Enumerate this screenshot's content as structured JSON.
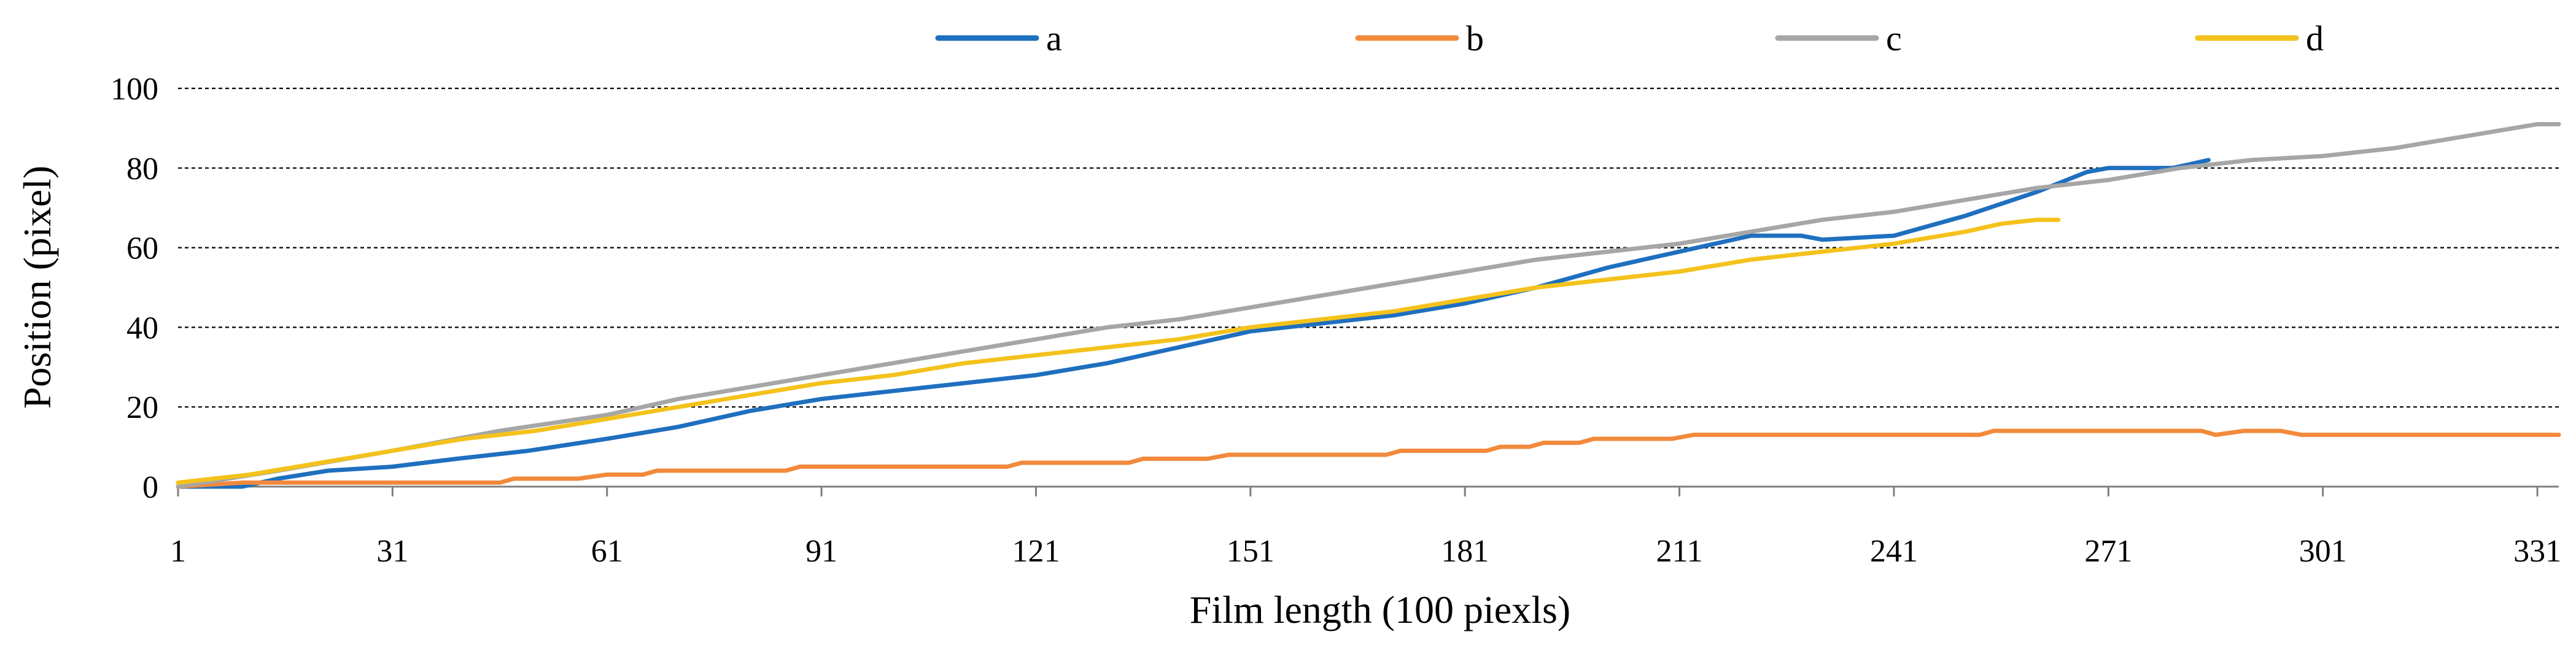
{
  "chart_data": {
    "type": "line",
    "title": "",
    "xlabel": "Film length (100 piexls)",
    "ylabel": "Position (pixel)",
    "xlim": [
      1,
      334
    ],
    "ylim": [
      0,
      100
    ],
    "x_ticks": [
      "1",
      "31",
      "61",
      "91",
      "121",
      "151",
      "181",
      "211",
      "241",
      "271",
      "301",
      "331"
    ],
    "y_ticks": [
      "0",
      "20",
      "40",
      "60",
      "80",
      "100"
    ],
    "grid": "horizontal-dashed",
    "legend_position": "top-center",
    "series": [
      {
        "name": "a",
        "color": "#1f6fbf",
        "points": [
          [
            1,
            0
          ],
          [
            10,
            0
          ],
          [
            15,
            2
          ],
          [
            22,
            4
          ],
          [
            31,
            5
          ],
          [
            40,
            7
          ],
          [
            50,
            9
          ],
          [
            61,
            12
          ],
          [
            71,
            15
          ],
          [
            81,
            19
          ],
          [
            91,
            22
          ],
          [
            101,
            24
          ],
          [
            111,
            26
          ],
          [
            121,
            28
          ],
          [
            131,
            31
          ],
          [
            141,
            35
          ],
          [
            151,
            39
          ],
          [
            161,
            41
          ],
          [
            171,
            43
          ],
          [
            181,
            46
          ],
          [
            191,
            50
          ],
          [
            201,
            55
          ],
          [
            211,
            59
          ],
          [
            221,
            63
          ],
          [
            228,
            63
          ],
          [
            231,
            62
          ],
          [
            241,
            63
          ],
          [
            251,
            68
          ],
          [
            261,
            74
          ],
          [
            268,
            79
          ],
          [
            271,
            80
          ],
          [
            280,
            80
          ],
          [
            285,
            82
          ]
        ]
      },
      {
        "name": "b",
        "color": "#f28a3c",
        "points": [
          [
            1,
            0
          ],
          [
            10,
            1
          ],
          [
            31,
            1
          ],
          [
            46,
            1
          ],
          [
            48,
            2
          ],
          [
            57,
            2
          ],
          [
            61,
            3
          ],
          [
            66,
            3
          ],
          [
            68,
            4
          ],
          [
            86,
            4
          ],
          [
            88,
            5
          ],
          [
            117,
            5
          ],
          [
            119,
            6
          ],
          [
            134,
            6
          ],
          [
            136,
            7
          ],
          [
            145,
            7
          ],
          [
            148,
            8
          ],
          [
            170,
            8
          ],
          [
            172,
            9
          ],
          [
            184,
            9
          ],
          [
            186,
            10
          ],
          [
            190,
            10
          ],
          [
            192,
            11
          ],
          [
            197,
            11
          ],
          [
            199,
            12
          ],
          [
            210,
            12
          ],
          [
            213,
            13
          ],
          [
            253,
            13
          ],
          [
            255,
            14
          ],
          [
            284,
            14
          ],
          [
            286,
            13
          ],
          [
            290,
            14
          ],
          [
            295,
            14
          ],
          [
            298,
            13
          ],
          [
            334,
            13
          ]
        ]
      },
      {
        "name": "c",
        "color": "#a6a6a6",
        "points": [
          [
            1,
            0
          ],
          [
            15,
            4
          ],
          [
            31,
            9
          ],
          [
            46,
            14
          ],
          [
            61,
            18
          ],
          [
            71,
            22
          ],
          [
            81,
            25
          ],
          [
            91,
            28
          ],
          [
            101,
            31
          ],
          [
            111,
            34
          ],
          [
            121,
            37
          ],
          [
            131,
            40
          ],
          [
            141,
            42
          ],
          [
            151,
            45
          ],
          [
            161,
            48
          ],
          [
            171,
            51
          ],
          [
            181,
            54
          ],
          [
            191,
            57
          ],
          [
            201,
            59
          ],
          [
            211,
            61
          ],
          [
            221,
            64
          ],
          [
            231,
            67
          ],
          [
            241,
            69
          ],
          [
            251,
            72
          ],
          [
            261,
            75
          ],
          [
            271,
            77
          ],
          [
            281,
            80
          ],
          [
            291,
            82
          ],
          [
            301,
            83
          ],
          [
            311,
            85
          ],
          [
            321,
            88
          ],
          [
            331,
            91
          ],
          [
            334,
            91
          ]
        ]
      },
      {
        "name": "d",
        "color": "#f4c21c",
        "points": [
          [
            1,
            1
          ],
          [
            11,
            3
          ],
          [
            21,
            6
          ],
          [
            31,
            9
          ],
          [
            41,
            12
          ],
          [
            51,
            14
          ],
          [
            61,
            17
          ],
          [
            71,
            20
          ],
          [
            81,
            23
          ],
          [
            91,
            26
          ],
          [
            101,
            28
          ],
          [
            111,
            31
          ],
          [
            121,
            33
          ],
          [
            131,
            35
          ],
          [
            141,
            37
          ],
          [
            151,
            40
          ],
          [
            161,
            42
          ],
          [
            171,
            44
          ],
          [
            181,
            47
          ],
          [
            191,
            50
          ],
          [
            201,
            52
          ],
          [
            211,
            54
          ],
          [
            221,
            57
          ],
          [
            231,
            59
          ],
          [
            241,
            61
          ],
          [
            251,
            64
          ],
          [
            256,
            66
          ],
          [
            261,
            67
          ],
          [
            264,
            67
          ]
        ]
      }
    ]
  }
}
